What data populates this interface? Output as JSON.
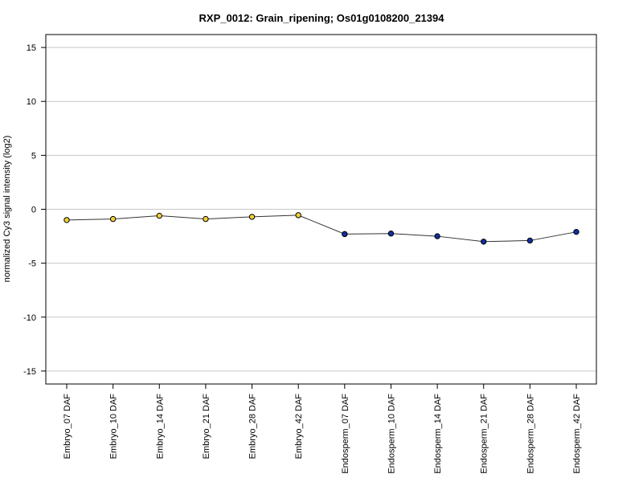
{
  "chart_data": {
    "type": "line",
    "title": "RXP_0012: Grain_ripening; Os01g0108200_21394",
    "xlabel": "",
    "ylabel": "normalized Cy3 signal intensity (log2)",
    "ylim": [
      -16.2,
      16.2
    ],
    "yticks": [
      -15,
      -10,
      -5,
      0,
      5,
      10,
      15
    ],
    "grid": true,
    "categories": [
      "Embryo_07 DAF",
      "Embryo_10 DAF",
      "Embryo_14 DAF",
      "Embryo_21 DAF",
      "Embryo_28 DAF",
      "Embryo_42 DAF",
      "Endosperm_07 DAF",
      "Endosperm_10 DAF",
      "Endosperm_14 DAF",
      "Endosperm_21 DAF",
      "Endosperm_28 DAF",
      "Endosperm_42 DAF"
    ],
    "values": [
      -1.0,
      -0.9,
      -0.6,
      -0.9,
      -0.7,
      -0.55,
      -2.3,
      -2.25,
      -2.5,
      -3.0,
      -2.9,
      -2.1
    ],
    "point_colors": [
      "#f2d03b",
      "#f2d03b",
      "#f2d03b",
      "#f2d03b",
      "#f2d03b",
      "#f2d03b",
      "#1030a0",
      "#1030a0",
      "#1030a0",
      "#1030a0",
      "#1030a0",
      "#1030a0"
    ],
    "line_color": "#333333",
    "grid_color": "#c8c8c8"
  }
}
